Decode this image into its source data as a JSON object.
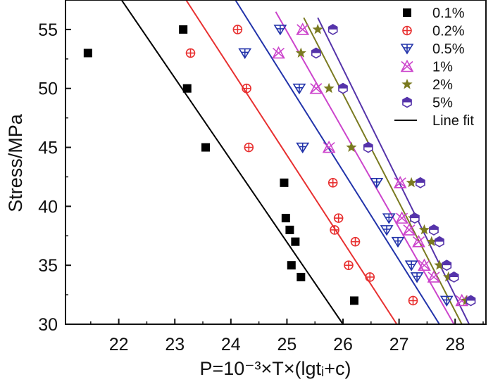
{
  "chart_data": {
    "type": "scatter",
    "xlabel": "P=10⁻³×T×(lgtᵢ+c)",
    "ylabel": "Stress/MPa",
    "xlim": [
      21.05,
      28.55
    ],
    "ylim": [
      30,
      57.5
    ],
    "x_ticks": [
      22,
      23,
      24,
      25,
      26,
      27,
      28
    ],
    "y_ticks": [
      30,
      35,
      40,
      45,
      50,
      55
    ],
    "series": [
      {
        "name": "0.1%",
        "marker": "square",
        "color": "#000000",
        "points": [
          [
            21.45,
            53
          ],
          [
            23.15,
            55
          ],
          [
            23.22,
            50
          ],
          [
            23.55,
            45
          ],
          [
            24.95,
            42
          ],
          [
            24.98,
            39
          ],
          [
            25.05,
            38
          ],
          [
            25.15,
            37
          ],
          [
            25.08,
            35
          ],
          [
            25.25,
            34
          ],
          [
            26.2,
            32
          ]
        ],
        "fit": [
          [
            22.05,
            57.5
          ],
          [
            26.0,
            30
          ]
        ]
      },
      {
        "name": "0.2%",
        "marker": "circle-plus",
        "color": "#e83030",
        "points": [
          [
            23.28,
            53
          ],
          [
            24.12,
            55
          ],
          [
            24.28,
            50
          ],
          [
            24.32,
            45
          ],
          [
            25.82,
            42
          ],
          [
            25.92,
            39
          ],
          [
            25.85,
            38
          ],
          [
            26.22,
            37
          ],
          [
            26.1,
            35
          ],
          [
            26.48,
            34
          ],
          [
            27.25,
            32
          ]
        ],
        "fit": [
          [
            23.2,
            57.5
          ],
          [
            26.96,
            30
          ]
        ]
      },
      {
        "name": "0.5%",
        "marker": "triangle-down-plus",
        "color": "#2233aa",
        "points": [
          [
            24.88,
            55
          ],
          [
            24.25,
            53
          ],
          [
            25.22,
            50
          ],
          [
            25.28,
            45
          ],
          [
            26.6,
            42
          ],
          [
            26.82,
            39
          ],
          [
            26.78,
            38
          ],
          [
            26.98,
            37
          ],
          [
            27.22,
            35
          ],
          [
            27.32,
            34
          ],
          [
            27.85,
            32
          ]
        ],
        "fit": [
          [
            24.08,
            57.5
          ],
          [
            27.72,
            30
          ]
        ]
      },
      {
        "name": "1%",
        "marker": "triangle-x",
        "color": "#cc44cc",
        "points": [
          [
            25.28,
            55
          ],
          [
            24.85,
            53
          ],
          [
            25.52,
            50
          ],
          [
            25.75,
            45
          ],
          [
            27.02,
            42
          ],
          [
            27.05,
            39
          ],
          [
            27.18,
            38
          ],
          [
            27.35,
            37
          ],
          [
            27.45,
            35
          ],
          [
            27.62,
            34
          ],
          [
            28.12,
            32
          ]
        ],
        "fit": [
          [
            24.8,
            56.5
          ],
          [
            27.98,
            30
          ]
        ]
      },
      {
        "name": "2%",
        "marker": "star",
        "color": "#7a7a20",
        "points": [
          [
            25.55,
            55
          ],
          [
            25.25,
            53
          ],
          [
            25.75,
            50
          ],
          [
            26.15,
            45
          ],
          [
            27.22,
            42
          ],
          [
            27.25,
            39
          ],
          [
            27.45,
            38
          ],
          [
            27.58,
            37
          ],
          [
            27.72,
            35
          ],
          [
            27.88,
            34
          ],
          [
            28.2,
            32
          ]
        ],
        "fit": [
          [
            25.3,
            56
          ],
          [
            28.12,
            30
          ]
        ]
      },
      {
        "name": "5%",
        "marker": "hexagon",
        "color": "#5533aa",
        "points": [
          [
            25.82,
            55
          ],
          [
            25.52,
            53
          ],
          [
            26.0,
            50
          ],
          [
            26.45,
            45
          ],
          [
            27.38,
            42
          ],
          [
            27.28,
            39
          ],
          [
            27.62,
            38
          ],
          [
            27.72,
            37
          ],
          [
            27.85,
            35
          ],
          [
            27.98,
            34
          ],
          [
            28.28,
            32
          ]
        ],
        "fit": [
          [
            25.55,
            56
          ],
          [
            28.25,
            30
          ]
        ]
      }
    ],
    "legend": {
      "position": "top-right",
      "entries": [
        "0.1%",
        "0.2%",
        "0.5%",
        "1%",
        "2%",
        "5%",
        "Line fit"
      ]
    }
  }
}
